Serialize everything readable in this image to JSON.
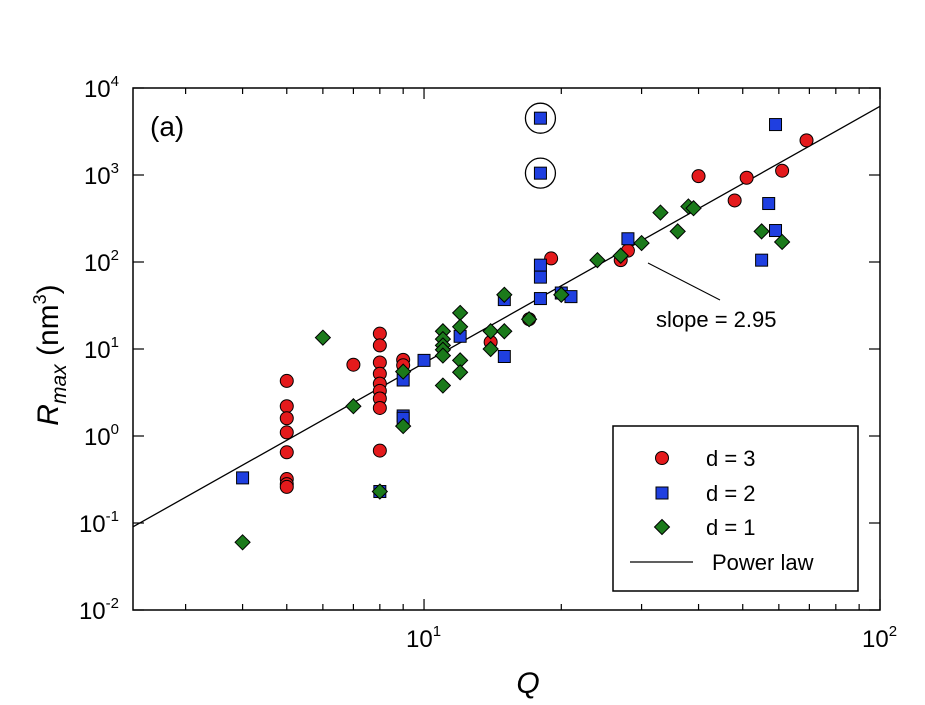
{
  "chart_data": {
    "type": "scatter",
    "panel_label": "(a)",
    "xlabel": "Q",
    "ylabel": {
      "main": "R",
      "sub": "max",
      "units_open": " (nm",
      "units_sup": "3",
      "units_close": ")"
    },
    "xscale": "log",
    "yscale": "log",
    "xlim": [
      2.3,
      100
    ],
    "ylim": [
      0.01,
      10000
    ],
    "x_ticks": [
      {
        "base": "10",
        "exp": "1",
        "value": 10
      },
      {
        "base": "10",
        "exp": "2",
        "value": 100
      }
    ],
    "y_ticks": [
      {
        "base": "10",
        "exp": "-2",
        "value": 0.01
      },
      {
        "base": "10",
        "exp": "-1",
        "value": 0.1
      },
      {
        "base": "10",
        "exp": "0",
        "value": 1
      },
      {
        "base": "10",
        "exp": "1",
        "value": 10
      },
      {
        "base": "10",
        "exp": "2",
        "value": 100
      },
      {
        "base": "10",
        "exp": "3",
        "value": 1000
      },
      {
        "base": "10",
        "exp": "4",
        "value": 10000
      }
    ],
    "legend_position": "bottom-right",
    "series": [
      {
        "name": "d = 3",
        "marker": "circle",
        "color": "#e41a1c",
        "points": [
          [
            5,
            4.3
          ],
          [
            5,
            2.2
          ],
          [
            5,
            1.6
          ],
          [
            5,
            1.1
          ],
          [
            5,
            0.65
          ],
          [
            5,
            0.32
          ],
          [
            5,
            0.28
          ],
          [
            5,
            0.26
          ],
          [
            7,
            6.6
          ],
          [
            8,
            15
          ],
          [
            8,
            11
          ],
          [
            8,
            7
          ],
          [
            8,
            5.2
          ],
          [
            8,
            4
          ],
          [
            8,
            3.3
          ],
          [
            8,
            2.7
          ],
          [
            8,
            2.1
          ],
          [
            8,
            0.68
          ],
          [
            9,
            7.5
          ],
          [
            9,
            6.5
          ],
          [
            14,
            12
          ],
          [
            17,
            22
          ],
          [
            19,
            110
          ],
          [
            27,
            105
          ],
          [
            28,
            135
          ],
          [
            40,
            970
          ],
          [
            48,
            510
          ],
          [
            51,
            930
          ],
          [
            61,
            1120
          ],
          [
            69,
            2500
          ]
        ]
      },
      {
        "name": "d = 2",
        "marker": "square",
        "color": "#1f3fe0",
        "points": [
          [
            4,
            0.33
          ],
          [
            8,
            0.23
          ],
          [
            9,
            4.4
          ],
          [
            9,
            1.7
          ],
          [
            9,
            1.6
          ],
          [
            10,
            7.4
          ],
          [
            12,
            14
          ],
          [
            15,
            8.2
          ],
          [
            15,
            37
          ],
          [
            18,
            4500
          ],
          [
            18,
            1050
          ],
          [
            18,
            92
          ],
          [
            18,
            67
          ],
          [
            18,
            38
          ],
          [
            20,
            44
          ],
          [
            21,
            40
          ],
          [
            28,
            185
          ],
          [
            55,
            105
          ],
          [
            57,
            470
          ],
          [
            59,
            3800
          ],
          [
            59,
            230
          ]
        ]
      },
      {
        "name": "d = 1",
        "marker": "diamond",
        "color": "#1b7a1b",
        "points": [
          [
            4,
            0.06
          ],
          [
            6,
            13.5
          ],
          [
            7,
            2.2
          ],
          [
            8,
            0.23
          ],
          [
            9,
            1.3
          ],
          [
            9,
            5.5
          ],
          [
            11,
            16
          ],
          [
            11,
            13
          ],
          [
            11,
            11
          ],
          [
            11,
            9.8
          ],
          [
            11,
            8.4
          ],
          [
            11,
            3.8
          ],
          [
            12,
            26
          ],
          [
            12,
            18
          ],
          [
            12,
            7.4
          ],
          [
            12,
            5.4
          ],
          [
            14,
            16
          ],
          [
            14,
            10
          ],
          [
            15,
            42
          ],
          [
            15,
            16
          ],
          [
            17,
            22
          ],
          [
            20,
            42
          ],
          [
            24,
            105
          ],
          [
            27,
            118
          ],
          [
            30,
            165
          ],
          [
            33,
            370
          ],
          [
            36,
            225
          ],
          [
            38,
            435
          ],
          [
            39,
            415
          ],
          [
            55,
            225
          ],
          [
            61,
            170
          ]
        ]
      }
    ],
    "fit": {
      "name": "Power law",
      "slope": 2.95,
      "y_at_x10": 6.9
    },
    "annotation": "slope = 2.95",
    "circled_points": [
      [
        18,
        4500
      ],
      [
        18,
        1050
      ]
    ]
  }
}
